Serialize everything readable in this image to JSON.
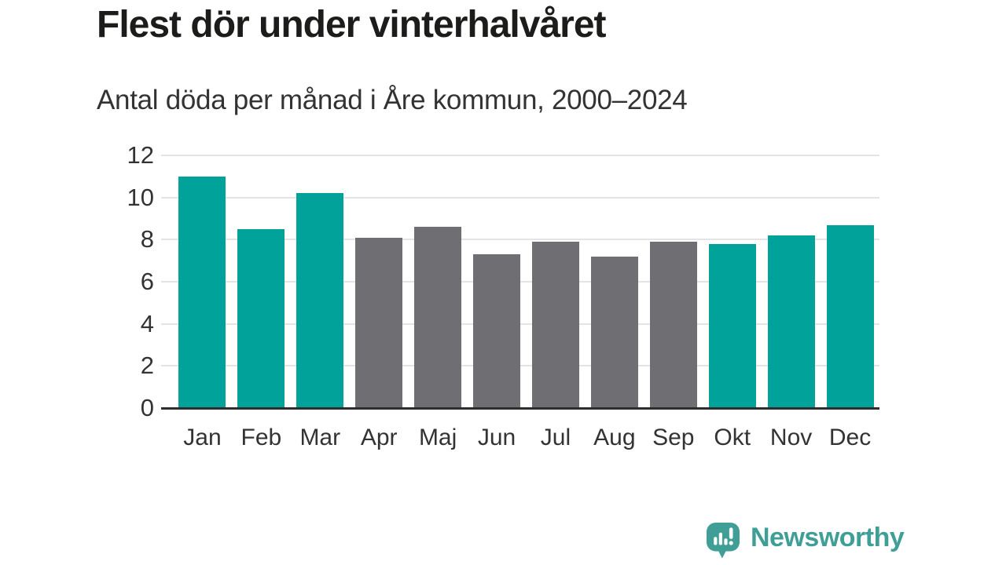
{
  "chart_data": {
    "type": "bar",
    "title": "Flest dör under vinterhalvåret",
    "subtitle": "Antal döda per månad i Åre kommun, 2000–2024",
    "categories": [
      "Jan",
      "Feb",
      "Mar",
      "Apr",
      "Maj",
      "Jun",
      "Jul",
      "Aug",
      "Sep",
      "Okt",
      "Nov",
      "Dec"
    ],
    "values": [
      11.0,
      8.5,
      10.2,
      8.1,
      8.6,
      7.3,
      7.9,
      7.2,
      7.9,
      7.8,
      8.2,
      8.7
    ],
    "point_colors": [
      "#00a29a",
      "#00a29a",
      "#00a29a",
      "#6e6e73",
      "#6e6e73",
      "#6e6e73",
      "#6e6e73",
      "#6e6e73",
      "#6e6e73",
      "#00a29a",
      "#00a29a",
      "#00a29a"
    ],
    "palette": {
      "winter_teal": "#00a29a",
      "summer_gray": "#6e6e73"
    },
    "xlabel": "",
    "ylabel": "",
    "ylim": [
      0,
      12
    ],
    "yticks": [
      0,
      2,
      4,
      6,
      8,
      10,
      12
    ],
    "grid": true,
    "legend_position": "none"
  },
  "footer": {
    "brand": "Newsworthy",
    "brand_color": "#3f9f96",
    "logo_icon": "newsworthy-speech-bubble-bar-chart-icon"
  }
}
